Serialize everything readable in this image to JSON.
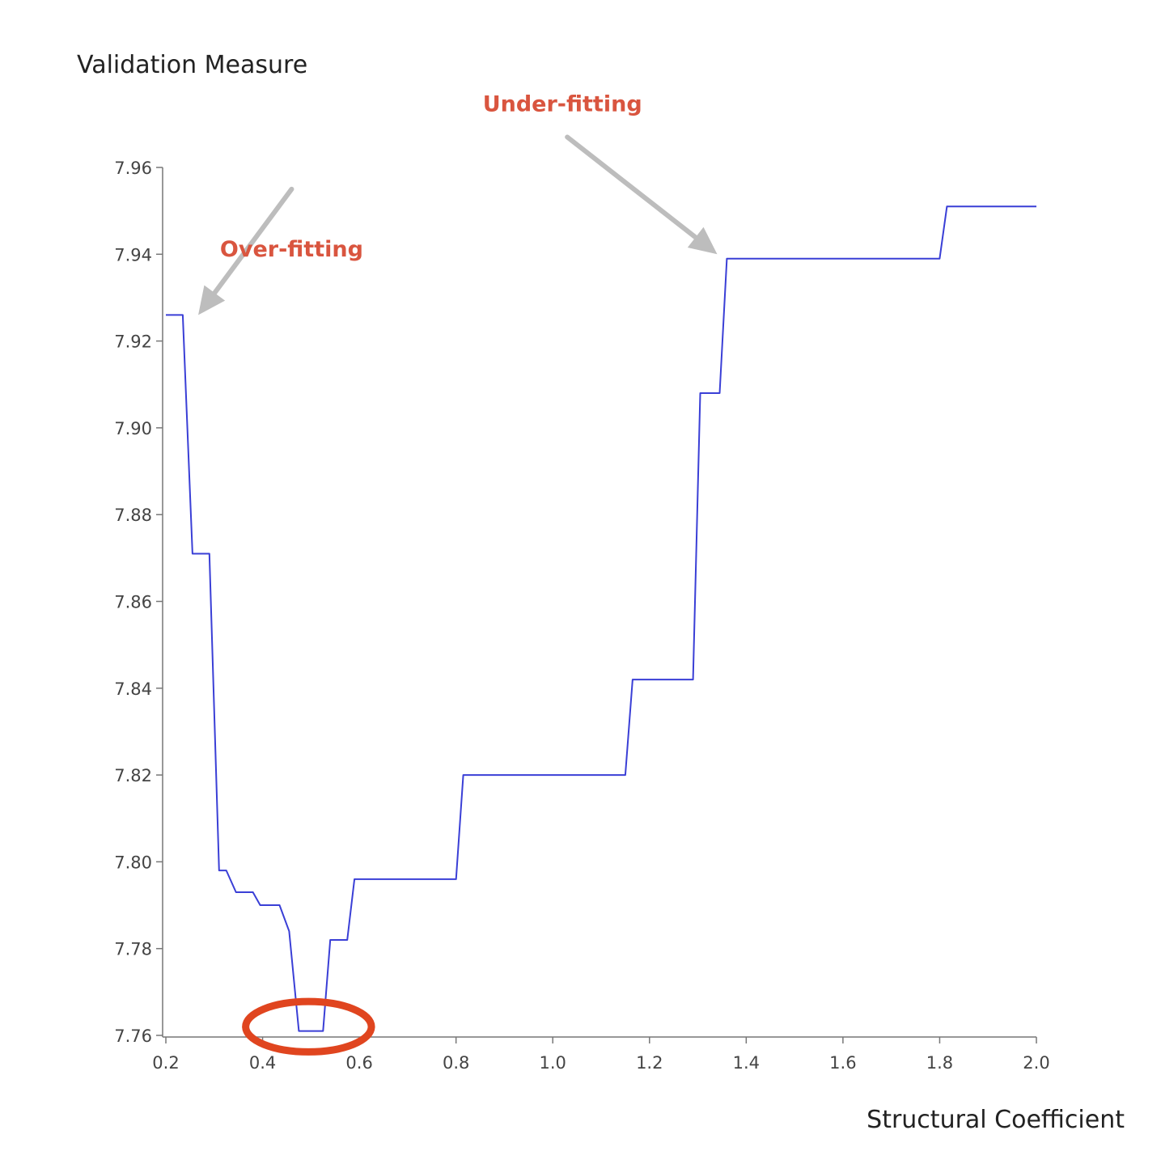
{
  "chart_data": {
    "type": "line",
    "title": "",
    "xlabel": "Structural Coefficient",
    "ylabel": "Validation Measure",
    "xlim": [
      0.2,
      2.0
    ],
    "ylim": [
      7.76,
      7.96
    ],
    "x_ticks": [
      "0.2",
      "0.4",
      "0.6",
      "0.8",
      "1.0",
      "1.2",
      "1.4",
      "1.6",
      "1.8",
      "2.0"
    ],
    "y_ticks": [
      "7.76",
      "7.78",
      "7.80",
      "7.82",
      "7.84",
      "7.86",
      "7.88",
      "7.90",
      "7.92",
      "7.94",
      "7.96"
    ],
    "grid": false,
    "legend": "none",
    "series": [
      {
        "color": "#3a3fd6",
        "points": [
          [
            0.2,
            7.926
          ],
          [
            0.235,
            7.926
          ],
          [
            0.255,
            7.871
          ],
          [
            0.29,
            7.871
          ],
          [
            0.31,
            7.798
          ],
          [
            0.325,
            7.798
          ],
          [
            0.345,
            7.793
          ],
          [
            0.38,
            7.793
          ],
          [
            0.395,
            7.79
          ],
          [
            0.435,
            7.79
          ],
          [
            0.455,
            7.784
          ],
          [
            0.475,
            7.761
          ],
          [
            0.525,
            7.761
          ],
          [
            0.54,
            7.782
          ],
          [
            0.575,
            7.782
          ],
          [
            0.59,
            7.796
          ],
          [
            0.8,
            7.796
          ],
          [
            0.815,
            7.82
          ],
          [
            1.15,
            7.82
          ],
          [
            1.165,
            7.842
          ],
          [
            1.29,
            7.842
          ],
          [
            1.305,
            7.908
          ],
          [
            1.345,
            7.908
          ],
          [
            1.36,
            7.939
          ],
          [
            1.8,
            7.939
          ],
          [
            1.815,
            7.951
          ],
          [
            2.0,
            7.951
          ]
        ]
      }
    ],
    "annotations": [
      {
        "text": "Over-fitting",
        "color": "#d9553f",
        "label_at": [
          0.46,
          7.9395
        ],
        "arrow_from": [
          0.46,
          7.955
        ],
        "arrow_to": [
          0.267,
          7.926
        ]
      },
      {
        "text": "Under-fitting",
        "color": "#d9553f",
        "label_at": [
          1.02,
          7.973
        ],
        "arrow_from": [
          1.03,
          7.967
        ],
        "arrow_to": [
          1.34,
          7.94
        ]
      }
    ],
    "highlight": {
      "shape": "ellipse",
      "color": "#e0451f",
      "center": [
        0.495,
        7.762
      ],
      "x_radius": 0.13,
      "y_radius": 0.0058
    },
    "arrow_color": "#bdbdbd"
  }
}
